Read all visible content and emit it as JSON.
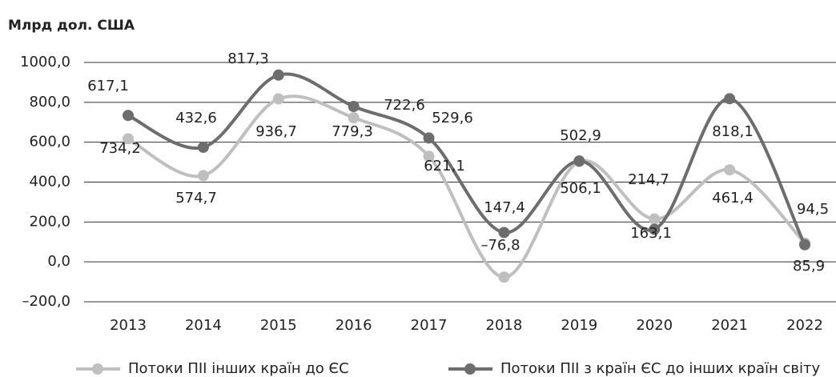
{
  "chart_data": {
    "type": "line",
    "title": "Млрд дол. США",
    "categories": [
      "2013",
      "2014",
      "2015",
      "2016",
      "2017",
      "2018",
      "2019",
      "2020",
      "2021",
      "2022"
    ],
    "series": [
      {
        "name": "Потоки ПІІ інших країн до ЄС",
        "color": "#bfbfbf",
        "values": [
          617.1,
          432.6,
          817.3,
          722.6,
          529.6,
          -76.8,
          502.9,
          214.7,
          461.4,
          94.5
        ],
        "value_labels": [
          "617,1",
          "432,6",
          "817,3",
          "722,6",
          "529,6",
          "–76,8",
          "502,9",
          "214,7",
          "461,4",
          "94,5"
        ]
      },
      {
        "name": "Потоки ПІІ з країн ЄС до інших країн світу",
        "color": "#6d6d6d",
        "values": [
          734.2,
          574.7,
          936.7,
          779.3,
          621.1,
          147.4,
          506.1,
          163.1,
          818.1,
          85.9
        ],
        "value_labels": [
          "734,2",
          "574,7",
          "936,7",
          "779,3",
          "621,1",
          "147,4",
          "506,1",
          "163,1",
          "818,1",
          "85,9"
        ]
      }
    ],
    "ylim": [
      -200,
      1000
    ],
    "yticks": [
      {
        "value": -200,
        "label": "–200,0"
      },
      {
        "value": 0,
        "label": "0,0"
      },
      {
        "value": 200,
        "label": "200,0"
      },
      {
        "value": 400,
        "label": "400,0"
      },
      {
        "value": 600,
        "label": "600,0"
      },
      {
        "value": 800,
        "label": "800,0"
      },
      {
        "value": 1000,
        "label": "1000,0"
      }
    ],
    "grid": true,
    "legend": "bottom"
  }
}
